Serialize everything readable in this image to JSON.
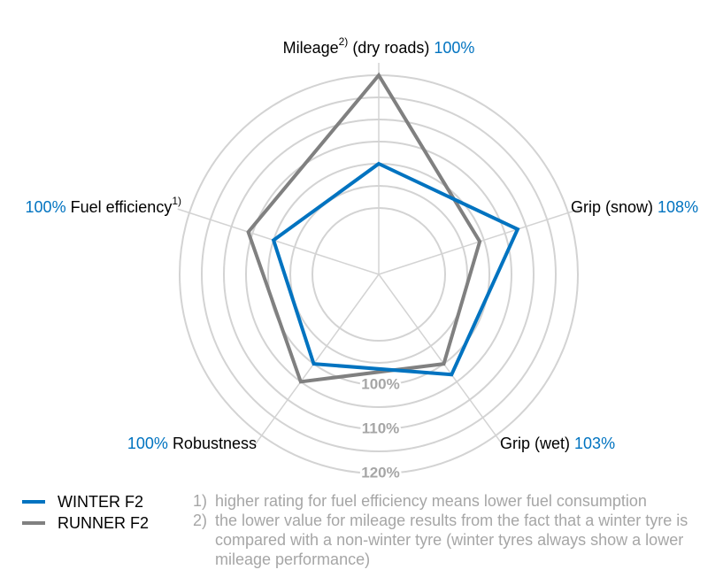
{
  "chart_data": {
    "type": "radar",
    "categories": [
      {
        "label": "Mileage",
        "note": "2)",
        "suffix": "(dry roads)"
      },
      {
        "label": "Grip (snow)"
      },
      {
        "label": "Grip (wet)"
      },
      {
        "label": "Robustness"
      },
      {
        "label": "Fuel efficiency",
        "note": "1)"
      }
    ],
    "series": [
      {
        "name": "WINTER F2",
        "color": "#0073c0",
        "values": [
          100,
          108,
          103,
          100,
          100
        ],
        "value_labels": [
          "100%",
          "108%",
          "103%",
          "100%",
          "100%"
        ]
      },
      {
        "name": "RUNNER F2",
        "color": "#808080",
        "values": [
          120,
          99,
          100,
          105,
          106
        ]
      }
    ],
    "rlim": [
      75,
      120
    ],
    "rticks": [
      {
        "value": 100,
        "label": "100%"
      },
      {
        "value": 110,
        "label": "110%"
      },
      {
        "value": 120,
        "label": "120%"
      }
    ],
    "rgrid": [
      90,
      95,
      100,
      105,
      110,
      115,
      120
    ],
    "notes": [
      {
        "marker": "1)",
        "text": "higher rating for fuel efficiency means lower fuel consumption"
      },
      {
        "marker": "2)",
        "text": "the lower value for mileage results from the fact that a winter tyre is compared with a non-winter tyre (winter tyres always show a lower mileage performance)"
      }
    ]
  }
}
